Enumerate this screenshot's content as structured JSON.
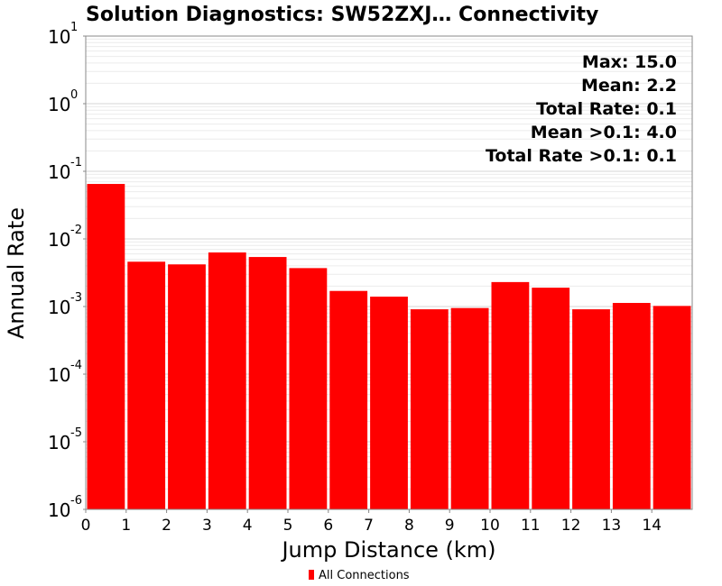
{
  "chart_data": {
    "type": "bar",
    "title": "Solution Diagnostics: SW52ZXJ… Connectivity",
    "xlabel": "Jump Distance (km)",
    "ylabel": "Annual Rate",
    "yscale": "log",
    "ylim": [
      1e-06,
      10
    ],
    "xlim": [
      0,
      15
    ],
    "x_ticks": [
      "0",
      "1",
      "2",
      "3",
      "4",
      "5",
      "6",
      "7",
      "8",
      "9",
      "10",
      "11",
      "12",
      "13",
      "14"
    ],
    "y_ticks": [
      {
        "base": "10",
        "exp": "1"
      },
      {
        "base": "10",
        "exp": "0"
      },
      {
        "base": "10",
        "exp": "-1"
      },
      {
        "base": "10",
        "exp": "-2"
      },
      {
        "base": "10",
        "exp": "-3"
      },
      {
        "base": "10",
        "exp": "-4"
      },
      {
        "base": "10",
        "exp": "-5"
      },
      {
        "base": "10",
        "exp": "-6"
      }
    ],
    "grid": true,
    "series": [
      {
        "name": "All Connections",
        "color": "#ff0000",
        "x_start": [
          0,
          1,
          2,
          3,
          4,
          5,
          6,
          7,
          8,
          9,
          10,
          11,
          12,
          13,
          14
        ],
        "values": [
          0.065,
          0.0046,
          0.0042,
          0.0063,
          0.0054,
          0.0037,
          0.0017,
          0.0014,
          0.00091,
          0.00095,
          0.0023,
          0.0019,
          0.00091,
          0.00113,
          0.00102
        ]
      }
    ],
    "annotations": [
      "Max: 15.0",
      "Mean: 2.2",
      "Total Rate: 0.1",
      "Mean >0.1: 4.0",
      "Total Rate >0.1: 0.1"
    ],
    "annotation_position": "top-right",
    "legend_position": "bottom-center"
  }
}
